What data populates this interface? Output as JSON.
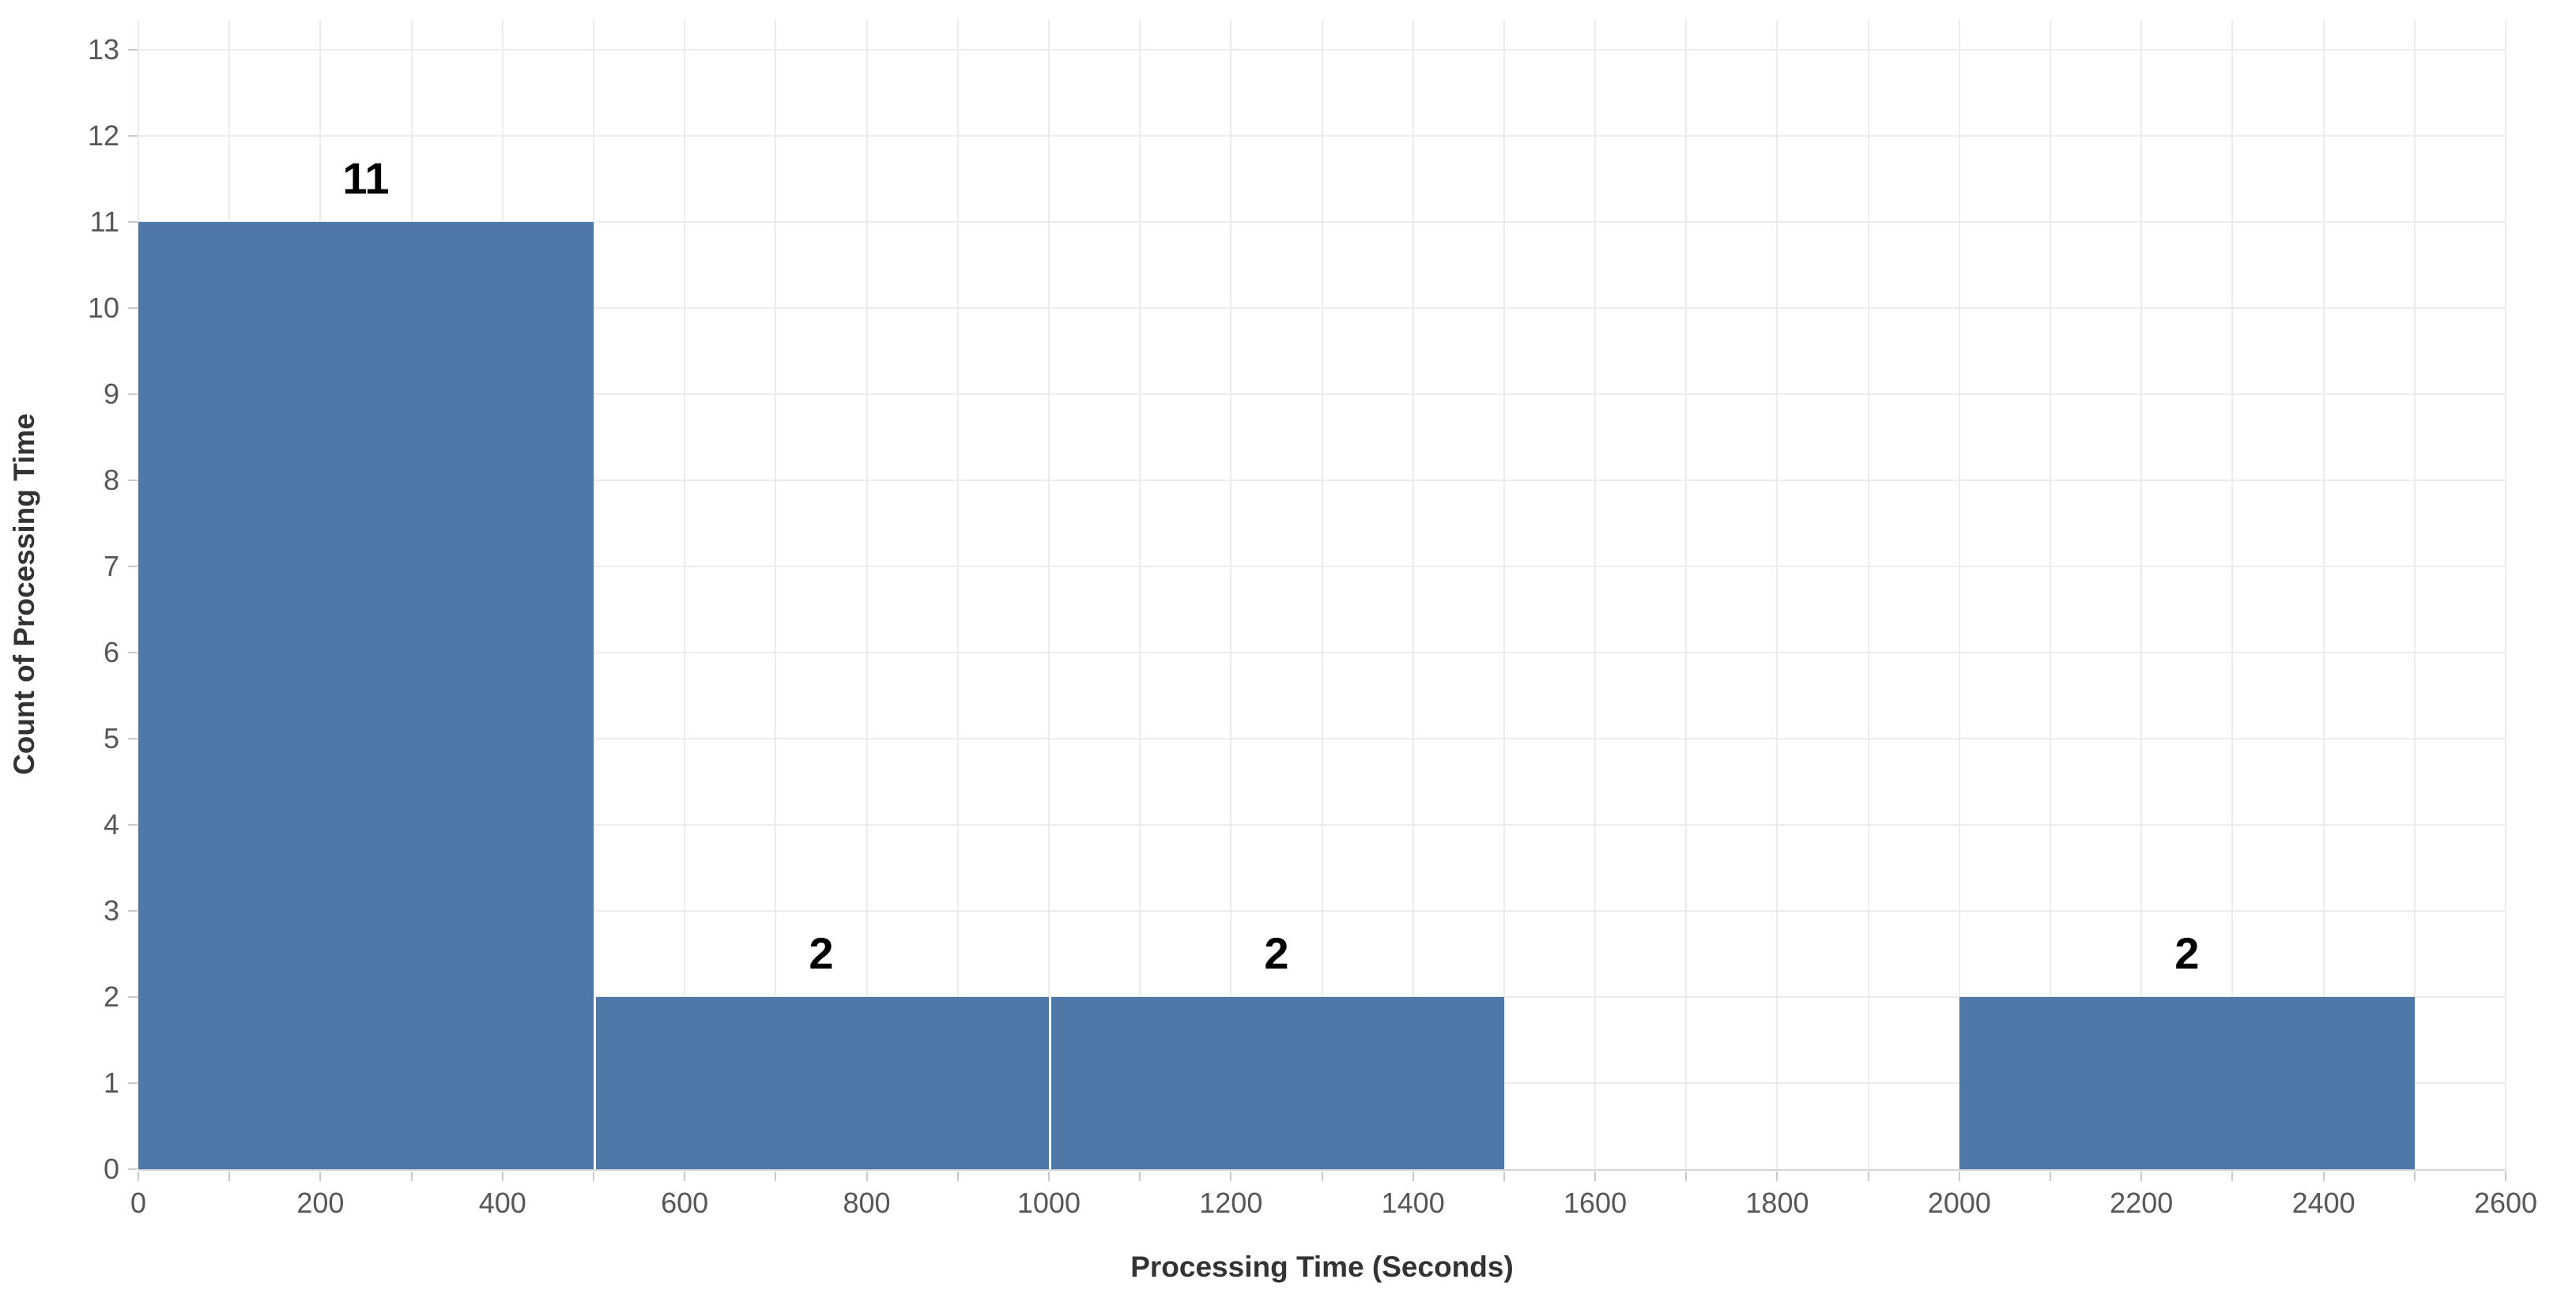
{
  "chart_data": {
    "type": "bar",
    "variant": "histogram",
    "title": "",
    "xlabel": "Processing Time (Seconds)",
    "ylabel": "Count of Processing Time",
    "xlim": [
      0,
      2600
    ],
    "ylim": [
      0,
      13
    ],
    "x_ticks": [
      0,
      200,
      400,
      600,
      800,
      1000,
      1200,
      1400,
      1600,
      1800,
      2000,
      2200,
      2400,
      2600
    ],
    "y_ticks": [
      0,
      1,
      2,
      3,
      4,
      5,
      6,
      7,
      8,
      9,
      10,
      11,
      12,
      13
    ],
    "x_grid_step": 100,
    "grid": true,
    "legend": false,
    "bar_color": "#4d78a7",
    "bin_width": 500,
    "bars": [
      {
        "x_start": 0,
        "x_end": 500,
        "count": 11,
        "label": "11"
      },
      {
        "x_start": 500,
        "x_end": 1000,
        "count": 2,
        "label": "2"
      },
      {
        "x_start": 1000,
        "x_end": 1500,
        "count": 2,
        "label": "2"
      },
      {
        "x_start": 2000,
        "x_end": 2500,
        "count": 2,
        "label": "2"
      }
    ]
  }
}
